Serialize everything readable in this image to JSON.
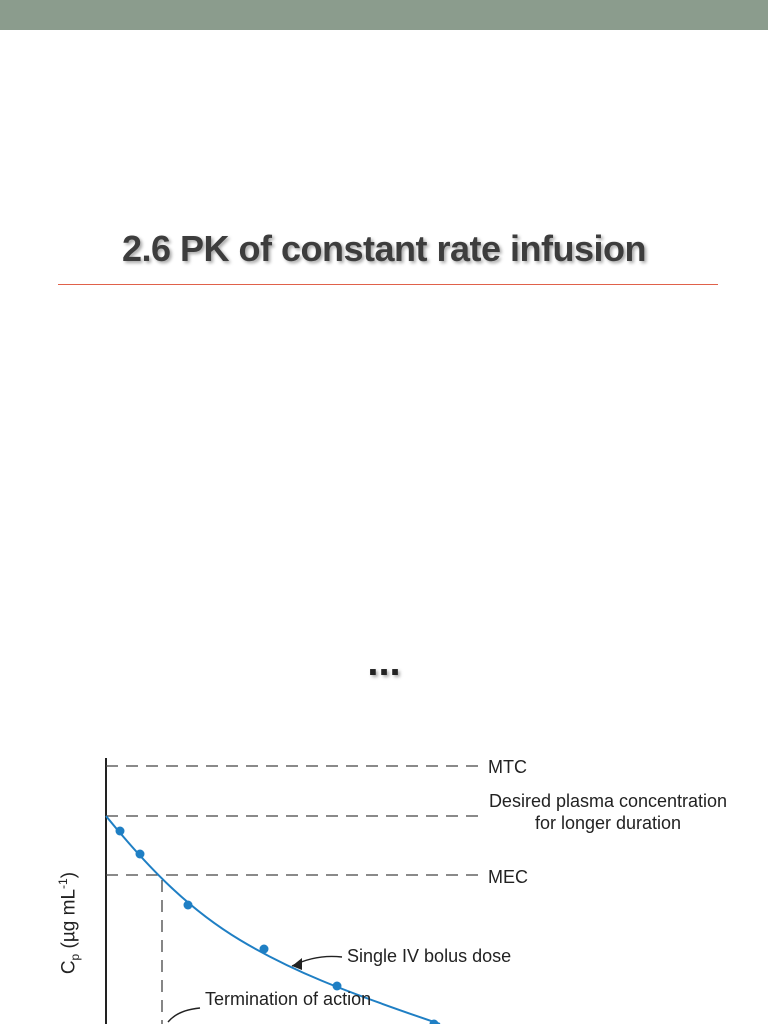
{
  "slide": {
    "title": "2.6 PK of constant rate infusion",
    "ellipsis": "...",
    "colors": {
      "top_bar": "#8b9c8d",
      "rule": "#e0614a",
      "curve": "#1f7fc4"
    }
  },
  "chart_data": {
    "type": "line",
    "title": "",
    "xlabel": "",
    "ylabel": "Cp (µg mL-1)",
    "ylabel_parts": {
      "main": "C",
      "sub": "p",
      "unit": "(µg mL",
      "exp": "-1",
      "close": ")"
    },
    "reference_lines": [
      {
        "name": "MTC",
        "label": "MTC"
      },
      {
        "name": "desired",
        "label": "Desired plasma concentration for longer duration"
      },
      {
        "name": "MEC",
        "label": "MEC"
      }
    ],
    "series": [
      {
        "values": [
          1.0,
          0.93,
          0.86,
          0.74,
          0.6,
          0.52,
          0.45
        ]
      }
    ],
    "annotations": [
      {
        "text": "Single IV bolus dose"
      },
      {
        "text": "Termination of action"
      }
    ]
  }
}
